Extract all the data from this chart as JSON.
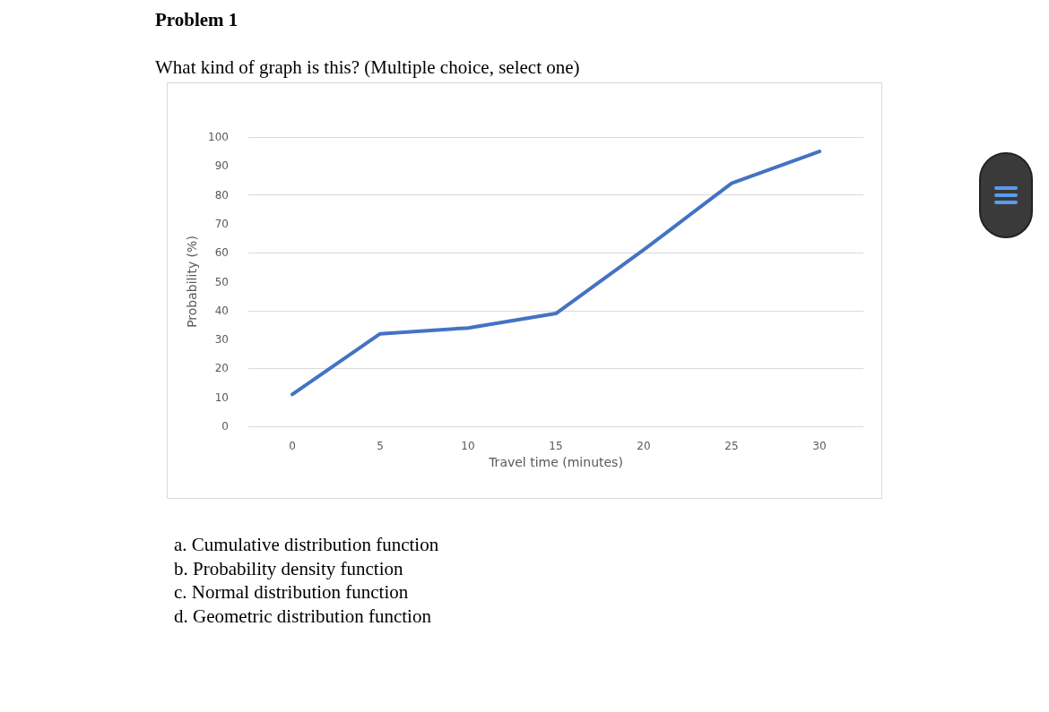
{
  "chart_data": {
    "type": "line",
    "title": "Problem 1",
    "subtitle": "What kind of graph is this? (Multiple choice, select one)",
    "xlabel": "Travel time (minutes)",
    "ylabel": "Probability (%)",
    "categories": [
      "0",
      "5",
      "10",
      "15",
      "20",
      "25",
      "30"
    ],
    "series": [
      {
        "color": "#4472c4",
        "values": [
          11,
          32,
          34,
          39,
          61,
          84,
          95
        ]
      }
    ],
    "ylim": [
      0,
      100
    ],
    "yticks": [
      0,
      10,
      20,
      30,
      40,
      50,
      60,
      70,
      80,
      90,
      100
    ],
    "grid": "y",
    "marker": "none",
    "line_style": "solid",
    "annotations": [
      "a.  Cumulative distribution function",
      "b.  Probability density function",
      "c.  Normal distribution function",
      "d.  Geometric distribution function"
    ]
  }
}
